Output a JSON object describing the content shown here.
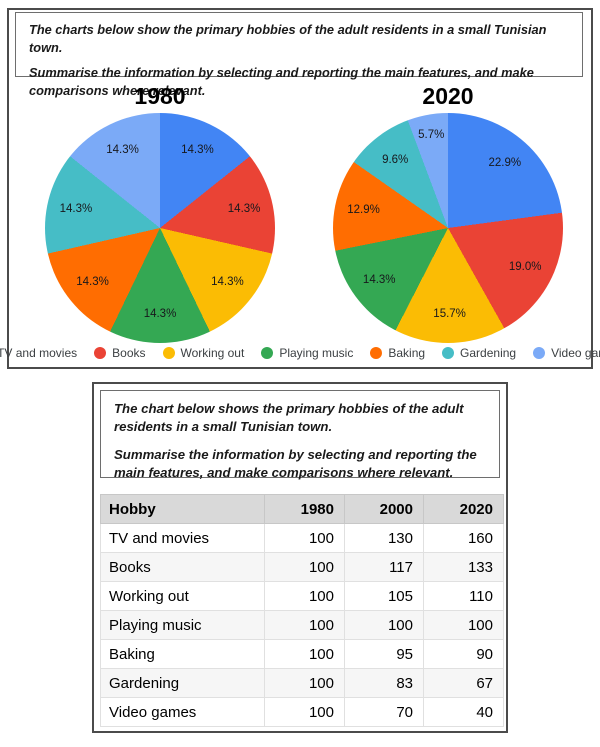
{
  "top_panel": {
    "instructions": [
      "The charts below show the primary hobbies of the adult residents in a small Tunisian town.",
      "Summarise the information by selecting and reporting the main features, and make comparisons where relevant."
    ]
  },
  "bottom_panel": {
    "instructions": [
      "The chart below shows the primary hobbies of the adult residents in a small Tunisian town.",
      "Summarise the information by selecting and reporting the main features, and make comparisons where relevant."
    ]
  },
  "legend": {
    "items": [
      {
        "label": "TV and movies",
        "color": "#4285F4"
      },
      {
        "label": "Books",
        "color": "#EA4335"
      },
      {
        "label": "Working out",
        "color": "#FBBC04"
      },
      {
        "label": "Playing music",
        "color": "#34A853"
      },
      {
        "label": "Baking",
        "color": "#FF6D01"
      },
      {
        "label": "Gardening",
        "color": "#46BDC6"
      },
      {
        "label": "Video games",
        "color": "#7BAAF7"
      }
    ],
    "position": "bottom"
  },
  "chart_data": [
    {
      "type": "pie",
      "title": "1980",
      "labels": [
        "TV and movies",
        "Books",
        "Working out",
        "Playing music",
        "Baking",
        "Gardening",
        "Video games"
      ],
      "values": [
        14.3,
        14.3,
        14.3,
        14.3,
        14.3,
        14.3,
        14.3
      ],
      "colors": [
        "#4285F4",
        "#EA4335",
        "#FBBC04",
        "#34A853",
        "#FF6D01",
        "#46BDC6",
        "#7BAAF7"
      ],
      "start_angle": "top",
      "direction": "clockwise",
      "label_format": "percent"
    },
    {
      "type": "pie",
      "title": "2020",
      "labels": [
        "TV and movies",
        "Books",
        "Working out",
        "Playing music",
        "Baking",
        "Gardening",
        "Video games"
      ],
      "values": [
        22.9,
        19.0,
        15.7,
        14.3,
        12.9,
        9.6,
        5.7
      ],
      "colors": [
        "#4285F4",
        "#EA4335",
        "#FBBC04",
        "#34A853",
        "#FF6D01",
        "#46BDC6",
        "#7BAAF7"
      ],
      "start_angle": "top",
      "direction": "clockwise",
      "label_format": "percent"
    },
    {
      "type": "table",
      "headers": [
        "Hobby",
        "1980",
        "2000",
        "2020"
      ],
      "rows": [
        [
          "TV and movies",
          100,
          130,
          160
        ],
        [
          "Books",
          100,
          117,
          133
        ],
        [
          "Working out",
          100,
          105,
          110
        ],
        [
          "Playing music",
          100,
          100,
          100
        ],
        [
          "Baking",
          100,
          95,
          90
        ],
        [
          "Gardening",
          100,
          83,
          67
        ],
        [
          "Video games",
          100,
          70,
          40
        ]
      ]
    }
  ]
}
